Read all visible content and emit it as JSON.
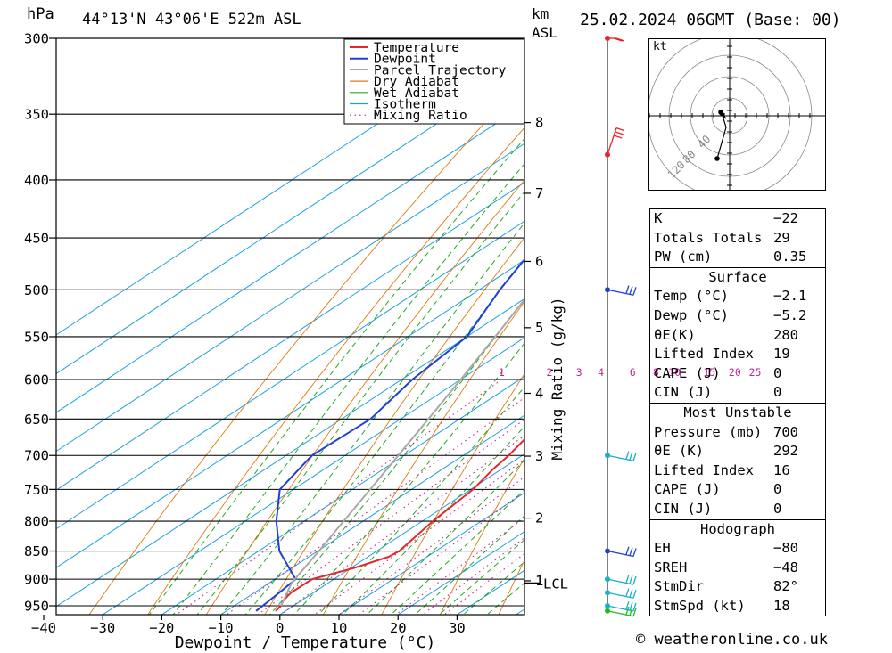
{
  "header": {
    "pressure_unit": "hPa",
    "location": "44°13'N 43°06'E 522m ASL",
    "height_unit_line1": "km",
    "height_unit_line2": "ASL",
    "datetime": "25.02.2024 06GMT (Base: 00)"
  },
  "chart_data": {
    "type": "line",
    "xlabel": "Dewpoint / Temperature (°C)",
    "ylabel": "hPa",
    "y2label": "Mixing Ratio (g/kg)",
    "x_ticks": [
      "−40",
      "−30",
      "−20",
      "−10",
      "0",
      "10",
      "20",
      "30"
    ],
    "x_tick_values": [
      -40,
      -30,
      -20,
      -10,
      0,
      10,
      20,
      30
    ],
    "pressure_levels": [
      300,
      350,
      400,
      450,
      500,
      550,
      600,
      650,
      700,
      750,
      800,
      850,
      900,
      950
    ],
    "pressure_labels": [
      "300",
      "350",
      "400",
      "450",
      "500",
      "550",
      "600",
      "650",
      "700",
      "750",
      "800",
      "850",
      "900",
      "950"
    ],
    "km_ticks": [
      {
        "label": "8",
        "p": 356
      },
      {
        "label": "7",
        "p": 411
      },
      {
        "label": "6",
        "p": 472
      },
      {
        "label": "5",
        "p": 540
      },
      {
        "label": "4",
        "p": 617
      },
      {
        "label": "3",
        "p": 701
      },
      {
        "label": "2",
        "p": 795
      },
      {
        "label": "1",
        "p": 903
      }
    ],
    "lcl_label": "LCL",
    "lcl_pressure": 907,
    "mixing_ratio_labels": [
      "1",
      "2",
      "3",
      "4",
      "6",
      "8",
      "10",
      "15",
      "20",
      "25"
    ],
    "mixing_ratio_values": [
      1,
      2,
      3,
      4,
      6,
      8,
      10,
      15,
      20,
      25
    ],
    "legend": [
      "Temperature",
      "Dewpoint",
      "Parcel Trajectory",
      "Dry Adiabat",
      "Wet Adiabat",
      "Isotherm",
      "Mixing Ratio"
    ],
    "colors": {
      "temperature": "#e8252b",
      "dewpoint": "#1f3fd6",
      "parcel": "#a8a8a8",
      "dry_adiabat": "#e07a10",
      "wet_adiabat": "#22aa22",
      "isotherm": "#1ea0e0",
      "mixing_ratio": "#cc2299"
    },
    "series": [
      {
        "name": "Temperature",
        "points": [
          [
            960,
            -1.7
          ],
          [
            950,
            -2.1
          ],
          [
            940,
            -3.1
          ],
          [
            925,
            -3.8
          ],
          [
            900,
            -3.7
          ],
          [
            880,
            0.5
          ],
          [
            860,
            3.5
          ],
          [
            850,
            3.8
          ],
          [
            800,
            1.8
          ],
          [
            750,
            0.4
          ],
          [
            720,
            -1.4
          ],
          [
            700,
            -2.3
          ],
          [
            650,
            -5.6
          ],
          [
            600,
            -9.6
          ],
          [
            550,
            -14.2
          ],
          [
            500,
            -18.6
          ],
          [
            460,
            -22.3
          ],
          [
            400,
            -28.6
          ],
          [
            350,
            -37.2
          ],
          [
            300,
            -47.5
          ]
        ]
      },
      {
        "name": "Dewpoint",
        "points": [
          [
            960,
            -5.0
          ],
          [
            950,
            -5.2
          ],
          [
            925,
            -5.8
          ],
          [
            900,
            -6.5
          ],
          [
            850,
            -16.5
          ],
          [
            800,
            -24.7
          ],
          [
            750,
            -32.3
          ],
          [
            700,
            -35.6
          ],
          [
            650,
            -35.1
          ],
          [
            600,
            -38.2
          ],
          [
            550,
            -40.0
          ],
          [
            500,
            -46.5
          ],
          [
            450,
            -52.7
          ],
          [
            400,
            -51.5
          ],
          [
            350,
            -53.8
          ],
          [
            300,
            -60.7
          ]
        ]
      },
      {
        "name": "Parcel Trajectory",
        "points": [
          [
            950,
            -2.1
          ],
          [
            907,
            -6.2
          ],
          [
            850,
            -9.8
          ],
          [
            800,
            -13.3
          ],
          [
            750,
            -17.0
          ],
          [
            700,
            -21.0
          ],
          [
            650,
            -25.3
          ],
          [
            600,
            -30.0
          ],
          [
            550,
            -35.2
          ],
          [
            500,
            -41.0
          ],
          [
            450,
            -47.5
          ],
          [
            400,
            -54.8
          ],
          [
            350,
            -62.0
          ],
          [
            300,
            -69.8
          ]
        ]
      }
    ],
    "winds": [
      {
        "p": 300,
        "color": "#e8252b"
      },
      {
        "p": 380,
        "color": "#e8252b"
      },
      {
        "p": 500,
        "color": "#1f3fd6"
      },
      {
        "p": 700,
        "color": "#18b0c8"
      },
      {
        "p": 850,
        "color": "#1f3fd6"
      },
      {
        "p": 900,
        "color": "#18b0c8"
      },
      {
        "p": 925,
        "color": "#18b0c8"
      },
      {
        "p": 950,
        "color": "#18b0c8"
      },
      {
        "p": 960,
        "color": "#22bb22"
      }
    ]
  },
  "hodograph": {
    "unit": "kt",
    "ring_labels": [
      "40",
      "80",
      "120"
    ]
  },
  "indices": {
    "basic": [
      {
        "label": "K",
        "value": "−22"
      },
      {
        "label": "Totals Totals",
        "value": "29"
      },
      {
        "label": "PW (cm)",
        "value": "0.35"
      }
    ],
    "surface_title": "Surface",
    "surface": [
      {
        "label": "Temp (°C)",
        "value": "−2.1"
      },
      {
        "label": "Dewp (°C)",
        "value": "−5.2"
      },
      {
        "label": "θE(K)",
        "value": "280"
      },
      {
        "label": "Lifted Index",
        "value": "19"
      },
      {
        "label": "CAPE (J)",
        "value": "0"
      },
      {
        "label": "CIN (J)",
        "value": "0"
      }
    ],
    "mu_title": "Most Unstable",
    "most_unstable": [
      {
        "label": "Pressure (mb)",
        "value": "700"
      },
      {
        "label": "θE (K)",
        "value": "292"
      },
      {
        "label": "Lifted Index",
        "value": "16"
      },
      {
        "label": "CAPE (J)",
        "value": "0"
      },
      {
        "label": "CIN (J)",
        "value": "0"
      }
    ],
    "hodo_title": "Hodograph",
    "hodograph": [
      {
        "label": "EH",
        "value": "−80"
      },
      {
        "label": "SREH",
        "value": "−48"
      },
      {
        "label": "StmDir",
        "value": "82°"
      },
      {
        "label": "StmSpd (kt)",
        "value": "18"
      }
    ]
  },
  "footer": {
    "copyright": "© weatheronline.co.uk"
  }
}
